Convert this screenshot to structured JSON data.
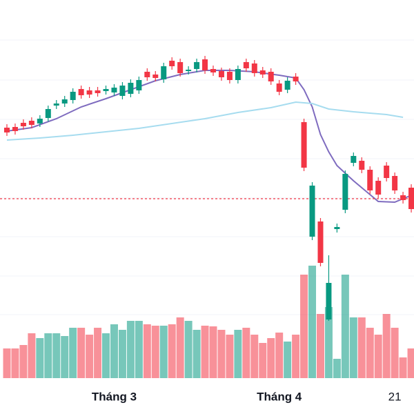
{
  "chart_data": {
    "type": "candlestick",
    "up_color": "#089981",
    "down_color": "#f23645",
    "ylim": [
      0,
      540
    ],
    "vlim": [
      0,
      163
    ],
    "gridlines": [
      482,
      424,
      367,
      310,
      253,
      197,
      140,
      84
    ],
    "price_line": 252,
    "open": [
      355,
      356,
      362,
      365,
      361,
      369,
      387,
      390,
      395,
      411,
      409,
      409,
      408,
      406,
      401,
      404,
      409,
      436,
      432,
      425,
      452,
      450,
      437,
      440,
      454,
      440,
      437,
      436,
      424,
      450,
      448,
      438,
      436,
      419,
      410,
      429,
      363,
      197,
      219,
      77,
      208,
      236,
      304,
      307,
      294,
      278,
      300,
      285,
      257,
      268
    ],
    "high": [
      360,
      361,
      367,
      370,
      373,
      387,
      395,
      401,
      412,
      416,
      414,
      414,
      416,
      418,
      421,
      425,
      429,
      441,
      437,
      449,
      457,
      455,
      444,
      455,
      459,
      445,
      442,
      441,
      445,
      455,
      453,
      443,
      441,
      424,
      428,
      434,
      368,
      276,
      224,
      170,
      216,
      293,
      319,
      312,
      299,
      283,
      305,
      290,
      262,
      273
    ],
    "low": [
      343,
      345,
      352,
      354,
      356,
      364,
      382,
      385,
      390,
      397,
      398,
      400,
      403,
      401,
      396,
      399,
      404,
      423,
      422,
      420,
      439,
      429,
      432,
      435,
      433,
      430,
      423,
      419,
      419,
      436,
      429,
      427,
      417,
      402,
      405,
      417,
      292,
      192,
      154,
      75,
      203,
      231,
      299,
      289,
      259,
      253,
      277,
      259,
      245,
      232
    ],
    "close": [
      348,
      350,
      357,
      359,
      368,
      382,
      390,
      396,
      407,
      402,
      403,
      405,
      411,
      413,
      416,
      420,
      424,
      428,
      427,
      444,
      444,
      434,
      439,
      450,
      438,
      435,
      428,
      424,
      440,
      441,
      434,
      432,
      422,
      407,
      423,
      422,
      297,
      271,
      159,
      130,
      211,
      288,
      314,
      294,
      264,
      258,
      282,
      264,
      250,
      237
    ],
    "volume": [
      43,
      43,
      48,
      65,
      58,
      65,
      65,
      61,
      73,
      73,
      63,
      73,
      65,
      78,
      70,
      83,
      83,
      78,
      76,
      76,
      78,
      88,
      83,
      70,
      76,
      75,
      70,
      63,
      70,
      73,
      63,
      51,
      58,
      66,
      53,
      63,
      150,
      163,
      93,
      103,
      28,
      150,
      88,
      88,
      73,
      63,
      93,
      73,
      30,
      43
    ],
    "moving_averages": [
      {
        "color": "#7e6bbf",
        "x": [
          0,
          3,
          6,
          9,
          12,
          15,
          18,
          21,
          24,
          27,
          30,
          33,
          35,
          36,
          37,
          38,
          39,
          40,
          42,
          44,
          45,
          47,
          49
        ],
        "values": [
          350,
          355,
          368,
          385,
          397,
          410,
          423,
          432,
          438,
          438,
          436,
          431,
          427,
          410,
          385,
          345,
          320,
          300,
          278,
          258,
          248,
          247,
          257
        ]
      },
      {
        "color": "#a6dcef",
        "x": [
          0,
          4,
          8,
          16,
          24,
          28,
          32,
          35,
          37,
          39,
          42,
          46,
          48
        ],
        "values": [
          337,
          340,
          344,
          354,
          368,
          377,
          384,
          392,
          390,
          382,
          378,
          374,
          370
        ]
      }
    ],
    "x_labels": [
      {
        "index": 13,
        "label": "Tháng 3"
      },
      {
        "index": 33,
        "label": "Tháng 4"
      },
      {
        "index": 47,
        "label": "21"
      }
    ]
  }
}
